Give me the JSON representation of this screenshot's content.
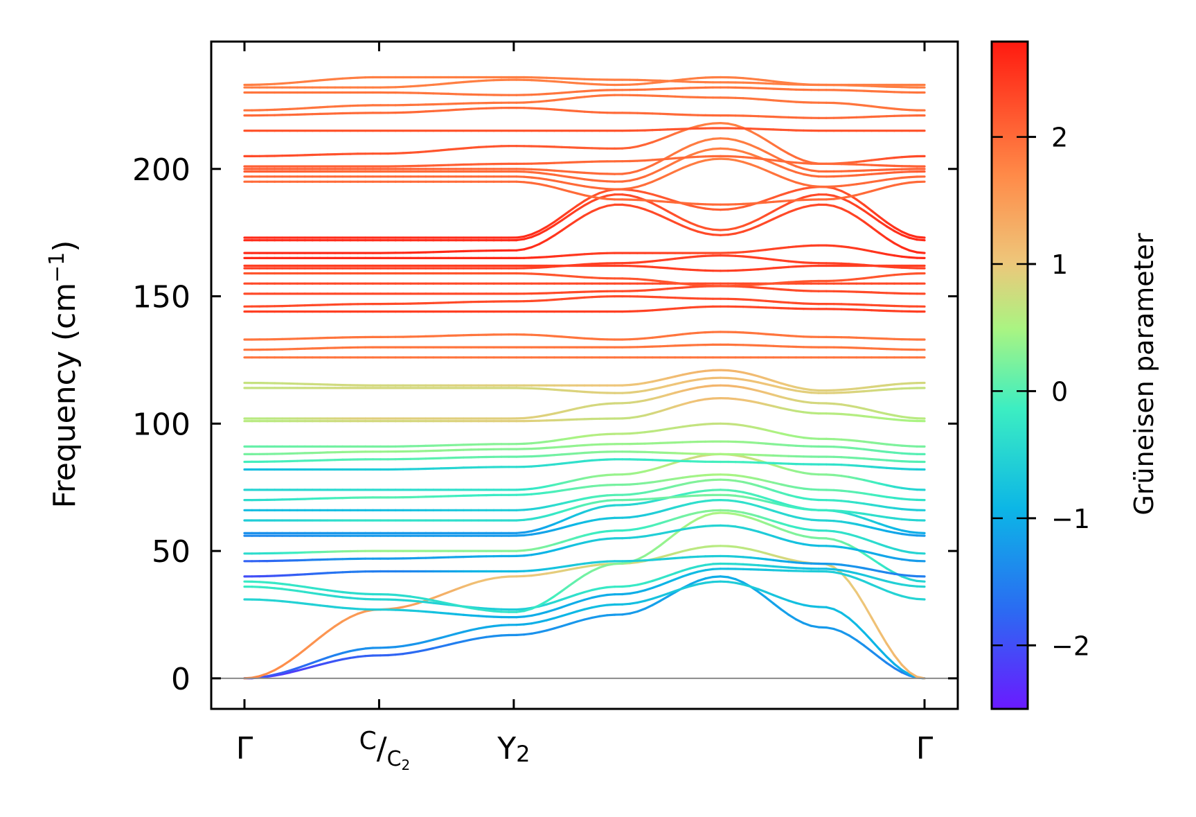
{
  "chart_data": {
    "type": "line",
    "ylabel_main": "Frequency (cm",
    "ylabel_sup": "−1",
    "ylabel_close": ")",
    "ylim": [
      -12,
      250
    ],
    "yticks": [
      0,
      50,
      100,
      150,
      200
    ],
    "xticks": [
      {
        "pos": 0,
        "label": "Γ"
      },
      {
        "pos": 0.198,
        "label": "C"
      },
      {
        "pos": 0.396,
        "label": "Y"
      },
      {
        "pos": 1.0,
        "label": "Γ"
      }
    ],
    "xtick_c_sub": "C",
    "xtick_c_subsub": "2",
    "xtick_c_slash": "/",
    "xtick_y_sub": "2",
    "colorbar": {
      "label": "Grüneisen parameter",
      "range": [
        -2.5,
        2.75
      ],
      "ticks": [
        {
          "value": 2,
          "label": "2"
        },
        {
          "value": 1,
          "label": "1"
        },
        {
          "value": 0,
          "label": "0"
        },
        {
          "value": -1,
          "label": "−1"
        },
        {
          "value": -2,
          "label": "−2"
        }
      ]
    },
    "x_nodes": [
      0,
      0.198,
      0.396,
      0.55,
      0.7,
      0.85,
      1.0
    ],
    "series": [
      {
        "y": [
          0,
          9,
          17,
          25,
          40,
          20,
          0
        ],
        "g": [
          -2.3,
          -1.8,
          -1.3,
          -1.2,
          -1.0,
          -1.2,
          -1.5
        ]
      },
      {
        "y": [
          0,
          12,
          21,
          29,
          38,
          28,
          0
        ],
        "g": [
          -2.0,
          -1.3,
          -1.0,
          -0.8,
          -0.6,
          -0.8,
          -1.0
        ]
      },
      {
        "y": [
          0,
          27,
          40,
          45,
          52,
          45,
          0
        ],
        "g": [
          1.7,
          1.5,
          1.0,
          0.8,
          0.6,
          0.9,
          1.2
        ]
      },
      {
        "y": [
          31,
          27,
          24,
          33,
          43,
          42,
          31
        ],
        "g": [
          -0.5,
          -0.6,
          -1.0,
          -1.0,
          -0.8,
          -0.6,
          -0.5
        ]
      },
      {
        "y": [
          36,
          31,
          27,
          36,
          45,
          43,
          36
        ],
        "g": [
          -0.2,
          -0.5,
          -0.6,
          -0.2,
          -0.4,
          -0.8,
          -0.5
        ]
      },
      {
        "y": [
          38,
          33,
          26,
          45,
          65,
          55,
          38
        ],
        "g": [
          -0.2,
          -0.4,
          -0.3,
          0.3,
          0.5,
          0.2,
          -0.5
        ]
      },
      {
        "y": [
          40,
          42,
          42,
          46,
          48,
          45,
          40
        ],
        "g": [
          -2.0,
          -1.5,
          -0.8,
          -0.6,
          -0.6,
          -1.2,
          -1.5
        ]
      },
      {
        "y": [
          46,
          47,
          48,
          55,
          60,
          52,
          46
        ],
        "g": [
          -1.8,
          -1.2,
          -1.0,
          -0.6,
          -0.5,
          -0.8,
          -1.2
        ]
      },
      {
        "y": [
          49,
          50,
          50,
          58,
          66,
          58,
          49
        ],
        "g": [
          -0.4,
          0.4,
          0.3,
          -0.2,
          0.3,
          -0.3,
          -0.5
        ]
      },
      {
        "y": [
          56,
          56,
          56,
          63,
          70,
          62,
          56
        ],
        "g": [
          -1.4,
          -1.2,
          -1.2,
          -0.7,
          -0.3,
          -0.5,
          -1.2
        ]
      },
      {
        "y": [
          57,
          57,
          57,
          68,
          74,
          66,
          57
        ],
        "g": [
          -1.3,
          -1.2,
          -1.2,
          -0.5,
          0.0,
          -0.3,
          -1.0
        ]
      },
      {
        "y": [
          62,
          62,
          62,
          70,
          72,
          66,
          62
        ],
        "g": [
          -0.6,
          -0.3,
          -0.4,
          0.1,
          0.2,
          -0.2,
          -0.5
        ]
      },
      {
        "y": [
          66,
          66,
          66,
          72,
          78,
          70,
          66
        ],
        "g": [
          -0.8,
          -0.8,
          -0.6,
          0.0,
          0.3,
          -0.2,
          -0.6
        ]
      },
      {
        "y": [
          70,
          71,
          72,
          76,
          80,
          74,
          70
        ],
        "g": [
          -0.4,
          0.0,
          -0.2,
          0.2,
          0.5,
          0.1,
          -0.3
        ]
      },
      {
        "y": [
          74,
          74,
          74,
          80,
          88,
          80,
          74
        ],
        "g": [
          -0.5,
          -0.4,
          -0.3,
          0.4,
          0.8,
          0.3,
          -0.5
        ]
      },
      {
        "y": [
          82,
          82,
          83,
          86,
          85,
          84,
          82
        ],
        "g": [
          -0.8,
          -0.6,
          -0.4,
          -0.3,
          -0.1,
          -0.3,
          -0.6
        ]
      },
      {
        "y": [
          85,
          86,
          87,
          89,
          88,
          87,
          85
        ],
        "g": [
          -0.1,
          0.0,
          0.1,
          0.3,
          0.5,
          0.2,
          0.0
        ]
      },
      {
        "y": [
          88,
          89,
          90,
          92,
          93,
          91,
          88
        ],
        "g": [
          0.2,
          0.4,
          0.3,
          0.4,
          0.4,
          0.2,
          0.0
        ]
      },
      {
        "y": [
          91,
          91,
          92,
          96,
          100,
          94,
          91
        ],
        "g": [
          0.1,
          0.2,
          0.3,
          0.6,
          0.7,
          0.4,
          0.2
        ]
      },
      {
        "y": [
          101,
          101,
          101,
          102,
          110,
          104,
          101
        ],
        "g": [
          0.6,
          0.8,
          0.9,
          0.7,
          1.1,
          0.6,
          0.5
        ]
      },
      {
        "y": [
          102,
          102,
          102,
          108,
          115,
          108,
          102
        ],
        "g": [
          0.6,
          0.9,
          0.9,
          0.8,
          1.2,
          0.8,
          0.6
        ]
      },
      {
        "y": [
          114,
          114,
          114,
          112,
          118,
          112,
          114
        ],
        "g": [
          0.7,
          0.8,
          0.8,
          0.9,
          1.1,
          0.9,
          0.7
        ]
      },
      {
        "y": [
          116,
          115,
          115,
          115,
          121,
          113,
          116
        ],
        "g": [
          0.7,
          0.8,
          0.9,
          1.0,
          1.2,
          0.9,
          0.8
        ]
      },
      {
        "y": [
          126,
          126,
          126,
          126,
          126,
          126,
          126
        ],
        "g": [
          1.9,
          1.9,
          1.9,
          1.9,
          1.9,
          1.9,
          1.9
        ]
      },
      {
        "y": [
          129,
          130,
          130,
          130,
          131,
          130,
          129
        ],
        "g": [
          1.9,
          1.9,
          1.9,
          1.9,
          1.9,
          1.9,
          1.9
        ]
      },
      {
        "y": [
          133,
          134,
          135,
          133,
          136,
          134,
          133
        ],
        "g": [
          1.9,
          1.9,
          1.9,
          1.9,
          1.9,
          1.9,
          1.9
        ]
      },
      {
        "y": [
          144,
          144,
          144,
          144,
          146,
          145,
          144
        ],
        "g": [
          2.4,
          2.4,
          2.4,
          2.4,
          2.3,
          2.4,
          2.4
        ]
      },
      {
        "y": [
          146,
          147,
          148,
          150,
          149,
          147,
          146
        ],
        "g": [
          2.3,
          2.3,
          2.3,
          2.3,
          2.3,
          2.3,
          2.3
        ]
      },
      {
        "y": [
          151,
          151,
          151,
          152,
          154,
          152,
          151
        ],
        "g": [
          2.3,
          2.3,
          2.3,
          2.3,
          2.3,
          2.3,
          2.3
        ]
      },
      {
        "y": [
          155,
          155,
          155,
          155,
          155,
          155,
          155
        ],
        "g": [
          2.3,
          2.3,
          2.3,
          2.3,
          2.3,
          2.3,
          2.3
        ]
      },
      {
        "y": [
          159,
          159,
          159,
          157,
          154,
          156,
          159
        ],
        "g": [
          2.2,
          2.2,
          2.2,
          2.2,
          2.2,
          2.2,
          2.2
        ]
      },
      {
        "y": [
          161,
          161,
          161,
          163,
          166,
          163,
          161
        ],
        "g": [
          2.4,
          2.4,
          2.4,
          2.4,
          2.4,
          2.4,
          2.4
        ]
      },
      {
        "y": [
          162,
          162,
          162,
          162,
          160,
          162,
          162
        ],
        "g": [
          2.4,
          2.4,
          2.4,
          2.4,
          2.4,
          2.4,
          2.4
        ]
      },
      {
        "y": [
          165,
          165,
          165,
          167,
          167,
          170,
          165
        ],
        "g": [
          2.6,
          2.6,
          2.6,
          2.4,
          2.3,
          2.4,
          2.6
        ]
      },
      {
        "y": [
          167,
          167,
          168,
          186,
          174,
          186,
          167
        ],
        "g": [
          2.6,
          2.6,
          2.6,
          2.3,
          2.3,
          2.3,
          2.6
        ]
      },
      {
        "y": [
          172,
          172,
          172,
          190,
          176,
          190,
          172
        ],
        "g": [
          2.6,
          2.6,
          2.6,
          2.3,
          2.2,
          2.3,
          2.6
        ]
      },
      {
        "y": [
          173,
          173,
          173,
          192,
          184,
          193,
          173
        ],
        "g": [
          2.6,
          2.6,
          2.6,
          2.2,
          2.1,
          2.2,
          2.6
        ]
      },
      {
        "y": [
          195,
          195,
          195,
          188,
          186,
          188,
          195
        ],
        "g": [
          2.0,
          2.0,
          2.0,
          2.0,
          2.0,
          2.0,
          2.0
        ]
      },
      {
        "y": [
          197,
          197,
          197,
          192,
          204,
          193,
          197
        ],
        "g": [
          2.0,
          2.0,
          2.0,
          2.0,
          1.8,
          2.0,
          2.0
        ]
      },
      {
        "y": [
          199,
          199,
          199,
          195,
          208,
          197,
          199
        ],
        "g": [
          2.1,
          2.0,
          2.0,
          2.0,
          1.8,
          2.0,
          2.1
        ]
      },
      {
        "y": [
          200,
          200,
          200,
          198,
          212,
          199,
          200
        ],
        "g": [
          2.1,
          2.1,
          2.0,
          2.0,
          1.8,
          2.0,
          2.1
        ]
      },
      {
        "y": [
          201,
          201,
          202,
          203,
          205,
          202,
          201
        ],
        "g": [
          2.1,
          2.1,
          2.1,
          2.0,
          2.0,
          2.0,
          2.1
        ]
      },
      {
        "y": [
          205,
          206,
          209,
          208,
          218,
          202,
          205
        ],
        "g": [
          2.3,
          2.2,
          2.2,
          2.1,
          1.8,
          2.0,
          2.3
        ]
      },
      {
        "y": [
          215,
          215,
          215,
          215,
          216,
          215,
          215
        ],
        "g": [
          2.2,
          2.2,
          2.2,
          2.2,
          2.2,
          2.2,
          2.2
        ]
      },
      {
        "y": [
          221,
          222,
          224,
          222,
          221,
          220,
          221
        ],
        "g": [
          2.0,
          2.0,
          2.0,
          2.0,
          2.0,
          2.0,
          2.0
        ]
      },
      {
        "y": [
          223,
          225,
          226,
          229,
          228,
          226,
          223
        ],
        "g": [
          1.9,
          1.9,
          1.9,
          1.9,
          1.9,
          1.9,
          1.9
        ]
      },
      {
        "y": [
          230,
          230,
          229,
          231,
          232,
          231,
          230
        ],
        "g": [
          1.9,
          1.9,
          1.9,
          1.9,
          1.9,
          1.9,
          1.9
        ]
      },
      {
        "y": [
          232,
          232,
          235,
          233,
          236,
          233,
          232
        ],
        "g": [
          1.8,
          1.8,
          1.8,
          1.8,
          1.8,
          1.8,
          1.8
        ]
      },
      {
        "y": [
          233,
          236,
          236,
          235,
          234,
          233,
          233
        ],
        "g": [
          1.8,
          1.8,
          1.8,
          1.8,
          1.8,
          1.8,
          1.8
        ]
      }
    ]
  }
}
